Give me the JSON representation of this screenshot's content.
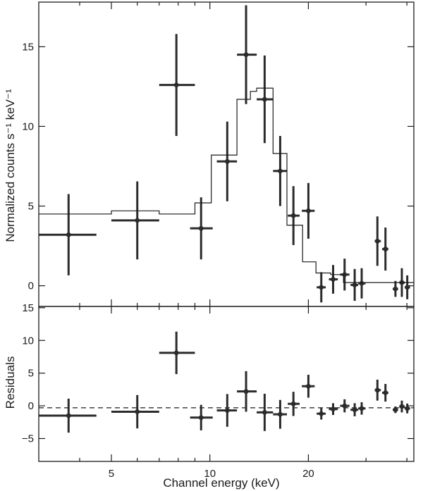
{
  "chart_data": [
    {
      "type": "scatter",
      "panel": "spectrum",
      "title": "",
      "ylabel": "Normalized counts s⁻¹ keV⁻¹",
      "xlabel": "",
      "xscale": "log",
      "xlim": [
        3.0,
        42.0
      ],
      "ylim": [
        -1.3,
        17.8
      ],
      "yticks": [
        0,
        5,
        10,
        15
      ],
      "xticks": [
        5,
        10,
        20
      ],
      "show_x_tick_labels": false,
      "grid": false,
      "series": [
        {
          "style": "crosses",
          "points": [
            {
              "x": 3.7,
              "xlo": 3.0,
              "xhi": 4.5,
              "y": 3.2,
              "yerr": 2.55
            },
            {
              "x": 6.0,
              "xlo": 5.0,
              "xhi": 7.0,
              "y": 4.1,
              "yerr": 2.45
            },
            {
              "x": 7.9,
              "xlo": 7.0,
              "xhi": 9.0,
              "y": 12.6,
              "yerr": 3.2
            },
            {
              "x": 9.4,
              "xlo": 8.7,
              "xhi": 10.2,
              "y": 3.6,
              "yerr": 1.95
            },
            {
              "x": 11.3,
              "xlo": 10.5,
              "xhi": 12.1,
              "y": 7.8,
              "yerr": 2.5
            },
            {
              "x": 12.9,
              "xlo": 12.1,
              "xhi": 13.9,
              "y": 14.5,
              "yerr": 3.1
            },
            {
              "x": 14.7,
              "xlo": 13.9,
              "xhi": 15.6,
              "y": 11.7,
              "yerr": 2.75
            },
            {
              "x": 16.4,
              "xlo": 15.6,
              "xhi": 17.2,
              "y": 7.2,
              "yerr": 2.2
            },
            {
              "x": 18.0,
              "xlo": 17.3,
              "xhi": 18.8,
              "y": 4.4,
              "yerr": 1.85
            },
            {
              "x": 20.0,
              "xlo": 19.1,
              "xhi": 20.9,
              "y": 4.7,
              "yerr": 1.75
            },
            {
              "x": 21.9,
              "xlo": 21.2,
              "xhi": 22.6,
              "y": -0.1,
              "yerr": 0.95
            },
            {
              "x": 23.8,
              "xlo": 23.1,
              "xhi": 24.6,
              "y": 0.4,
              "yerr": 0.9
            },
            {
              "x": 25.8,
              "xlo": 25.0,
              "xhi": 26.7,
              "y": 0.7,
              "yerr": 1.0
            },
            {
              "x": 27.7,
              "xlo": 26.9,
              "xhi": 28.4,
              "y": 0.05,
              "yerr": 1.0
            },
            {
              "x": 29.1,
              "xlo": 28.4,
              "xhi": 29.9,
              "y": 0.15,
              "yerr": 0.95
            },
            {
              "x": 32.5,
              "xlo": 31.9,
              "xhi": 33.3,
              "y": 2.8,
              "yerr": 1.55
            },
            {
              "x": 34.4,
              "xlo": 33.6,
              "xhi": 35.1,
              "y": 2.3,
              "yerr": 1.35
            },
            {
              "x": 36.9,
              "xlo": 36.2,
              "xhi": 37.6,
              "y": -0.2,
              "yerr": 0.5
            },
            {
              "x": 38.6,
              "xlo": 37.9,
              "xhi": 39.4,
              "y": 0.2,
              "yerr": 0.9
            },
            {
              "x": 40.1,
              "xlo": 39.4,
              "xhi": 40.9,
              "y": -0.1,
              "yerr": 0.75
            }
          ]
        },
        {
          "style": "step",
          "model_steps": [
            {
              "x0": 3.0,
              "x1": 5.0,
              "y": 4.5
            },
            {
              "x0": 5.0,
              "x1": 7.0,
              "y": 4.7
            },
            {
              "x0": 7.0,
              "x1": 9.0,
              "y": 4.5
            },
            {
              "x0": 9.0,
              "x1": 10.1,
              "y": 5.2
            },
            {
              "x0": 10.1,
              "x1": 12.1,
              "y": 8.2
            },
            {
              "x0": 12.1,
              "x1": 13.3,
              "y": 11.7
            },
            {
              "x0": 13.3,
              "x1": 13.9,
              "y": 12.2
            },
            {
              "x0": 13.9,
              "x1": 15.6,
              "y": 12.4
            },
            {
              "x0": 15.6,
              "x1": 17.2,
              "y": 8.3
            },
            {
              "x0": 17.2,
              "x1": 19.2,
              "y": 3.8
            },
            {
              "x0": 19.2,
              "x1": 21.1,
              "y": 1.5
            },
            {
              "x0": 21.1,
              "x1": 23.4,
              "y": 0.8
            },
            {
              "x0": 23.4,
              "x1": 25.6,
              "y": 0.7
            },
            {
              "x0": 25.6,
              "x1": 42.0,
              "y": 0.2
            }
          ]
        }
      ]
    },
    {
      "type": "scatter",
      "panel": "residuals",
      "title": "",
      "ylabel": "Residuals",
      "xlabel": "Channel energy (keV)",
      "xscale": "log",
      "xlim": [
        3.0,
        42.0
      ],
      "ylim": [
        -8.5,
        15.2
      ],
      "yticks": [
        -5,
        0,
        5,
        10,
        15
      ],
      "xticks": [
        5,
        10,
        20
      ],
      "zero_line": -0.3,
      "grid": false,
      "series": [
        {
          "style": "crosses",
          "points": [
            {
              "x": 3.7,
              "xlo": 3.0,
              "xhi": 4.5,
              "y": -1.5,
              "yerr": 2.6
            },
            {
              "x": 6.0,
              "xlo": 5.0,
              "xhi": 7.0,
              "y": -0.9,
              "yerr": 2.55
            },
            {
              "x": 7.9,
              "xlo": 7.0,
              "xhi": 9.0,
              "y": 8.1,
              "yerr": 3.25
            },
            {
              "x": 9.4,
              "xlo": 8.7,
              "xhi": 10.2,
              "y": -1.8,
              "yerr": 1.95
            },
            {
              "x": 11.3,
              "xlo": 10.5,
              "xhi": 12.1,
              "y": -0.7,
              "yerr": 2.5
            },
            {
              "x": 12.9,
              "xlo": 12.1,
              "xhi": 13.9,
              "y": 2.2,
              "yerr": 3.1
            },
            {
              "x": 14.7,
              "xlo": 13.9,
              "xhi": 15.6,
              "y": -1.0,
              "yerr": 2.85
            },
            {
              "x": 16.4,
              "xlo": 15.6,
              "xhi": 17.2,
              "y": -1.3,
              "yerr": 2.2
            },
            {
              "x": 18.0,
              "xlo": 17.3,
              "xhi": 18.8,
              "y": 0.3,
              "yerr": 1.85
            },
            {
              "x": 20.0,
              "xlo": 19.1,
              "xhi": 20.9,
              "y": 3.0,
              "yerr": 1.75
            },
            {
              "x": 21.9,
              "xlo": 21.2,
              "xhi": 22.6,
              "y": -1.2,
              "yerr": 0.9
            },
            {
              "x": 23.8,
              "xlo": 23.1,
              "xhi": 24.6,
              "y": -0.5,
              "yerr": 0.9
            },
            {
              "x": 25.8,
              "xlo": 25.0,
              "xhi": 26.7,
              "y": 0.0,
              "yerr": 1.0
            },
            {
              "x": 27.7,
              "xlo": 26.9,
              "xhi": 28.4,
              "y": -0.6,
              "yerr": 1.0
            },
            {
              "x": 29.1,
              "xlo": 28.4,
              "xhi": 29.9,
              "y": -0.4,
              "yerr": 0.95
            },
            {
              "x": 32.5,
              "xlo": 31.9,
              "xhi": 33.3,
              "y": 2.4,
              "yerr": 1.6
            },
            {
              "x": 34.4,
              "xlo": 33.6,
              "xhi": 35.1,
              "y": 2.0,
              "yerr": 1.35
            },
            {
              "x": 36.9,
              "xlo": 36.2,
              "xhi": 37.6,
              "y": -0.6,
              "yerr": 0.5
            },
            {
              "x": 38.6,
              "xlo": 37.9,
              "xhi": 39.4,
              "y": -0.1,
              "yerr": 0.9
            },
            {
              "x": 40.1,
              "xlo": 39.4,
              "xhi": 40.9,
              "y": -0.4,
              "yerr": 0.75
            }
          ]
        }
      ]
    }
  ]
}
